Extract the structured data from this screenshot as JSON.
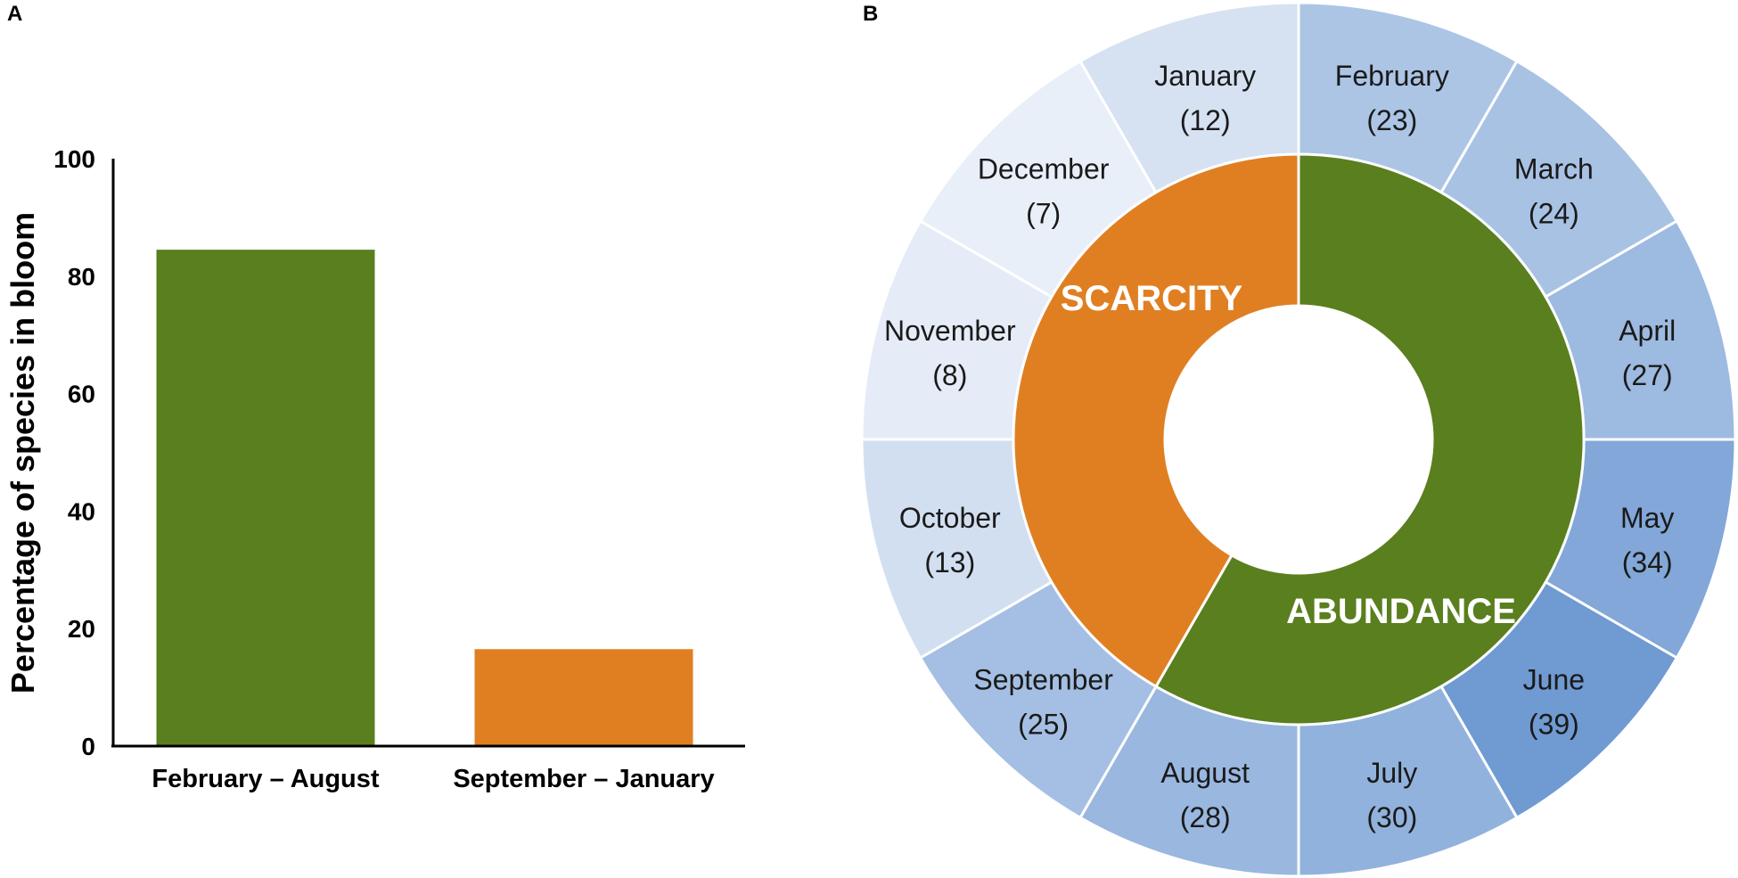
{
  "panels": {
    "a_letter": "A",
    "b_letter": "B"
  },
  "chart_data": [
    {
      "type": "bar",
      "ylabel": "Percentage of  species in bloom",
      "ylim": [
        0,
        100
      ],
      "yticks": [
        "0",
        "20",
        "40",
        "60",
        "80",
        "100"
      ],
      "categories": [
        "February – August",
        "September – January"
      ],
      "values": [
        84.5,
        16.5
      ],
      "colors": [
        "#5a7f1e",
        "#e07f22"
      ],
      "grid": false
    },
    {
      "type": "pie",
      "inner_ring": {
        "segments": [
          {
            "label": "ABUNDANCE",
            "months": 7,
            "color": "#5a7f1e"
          },
          {
            "label": "SCARCITY",
            "months": 5,
            "color": "#e07f22"
          }
        ]
      },
      "outer_ring": {
        "segments": [
          {
            "label": "February",
            "value_label": "(23)",
            "value": 23
          },
          {
            "label": "March",
            "value_label": "(24)",
            "value": 24
          },
          {
            "label": "April",
            "value_label": "(27)",
            "value": 27
          },
          {
            "label": "May",
            "value_label": "(34)",
            "value": 34
          },
          {
            "label": "June",
            "value_label": "(39)",
            "value": 39
          },
          {
            "label": "July",
            "value_label": "(30)",
            "value": 30
          },
          {
            "label": "August",
            "value_label": "(28)",
            "value": 28
          },
          {
            "label": "September",
            "value_label": "(25)",
            "value": 25
          },
          {
            "label": "October",
            "value_label": "(13)",
            "value": 13
          },
          {
            "label": "November",
            "value_label": "(8)",
            "value": 8
          },
          {
            "label": "December",
            "value_label": "(7)",
            "value": 7
          },
          {
            "label": "January",
            "value_label": "(12)",
            "value": 12
          }
        ]
      },
      "colors": {
        "accent_green": "#5a7f1e",
        "accent_orange": "#e07f22",
        "ring_low": "#e9eff8",
        "ring_high": "#6f9ad2"
      }
    }
  ]
}
